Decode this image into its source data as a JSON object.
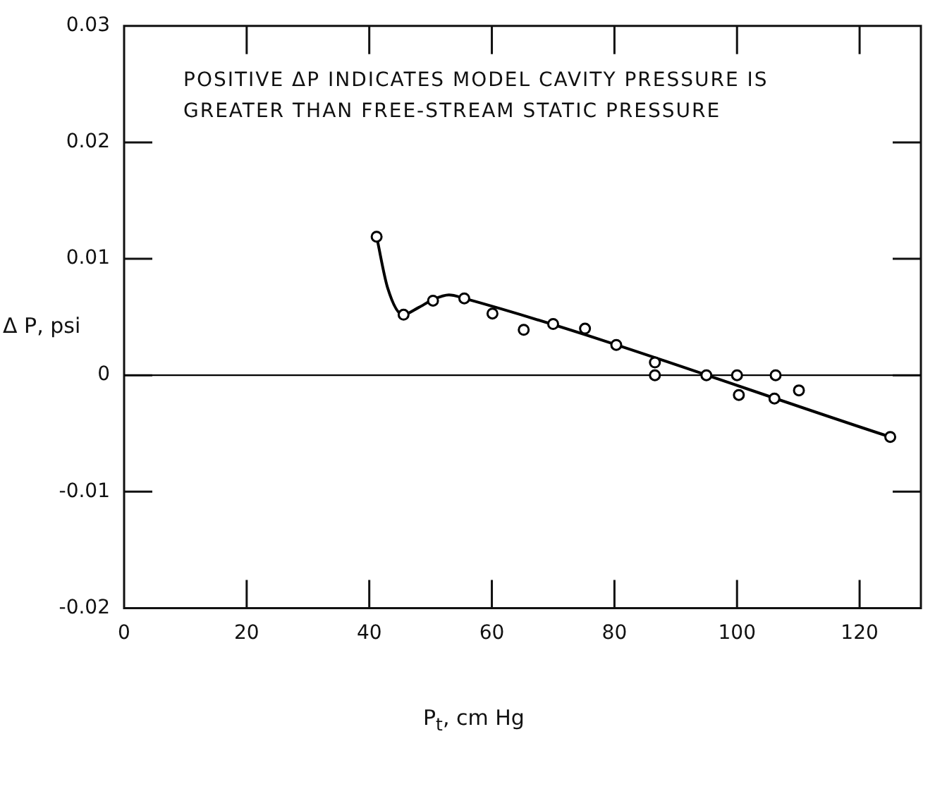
{
  "chart_data": {
    "type": "scatter",
    "annotations": [
      "POSITIVE ΔP INDICATES MODEL CAVITY PRESSURE IS GREATER THAN FREE-STREAM STATIC PRESSURE"
    ],
    "xlabel": "P$_{t}$, cm Hg",
    "ylabel": "Δ P, psi",
    "xlim": [
      0,
      130
    ],
    "xticks": [
      0,
      20,
      40,
      60,
      80,
      100,
      120
    ],
    "ylim": [
      -0.02,
      0.03
    ],
    "yticks": [
      -0.02,
      -0.01,
      0,
      0.01,
      0.02,
      0.03
    ],
    "grid": false,
    "legend": false,
    "marker": "circle",
    "ref_lines": [
      {
        "axis": "y",
        "value": 0,
        "color": "#000000"
      }
    ],
    "series": [
      {
        "type": "scatter",
        "color": "#000000",
        "x": [
          41.2,
          45.6,
          50.4,
          55.5,
          60.1,
          65.2,
          70.0,
          75.2,
          80.3,
          86.6,
          86.6,
          95.0,
          100.0,
          100.3,
          106.3,
          106.1,
          110.1,
          125.0
        ],
        "values": [
          0.0119,
          0.0052,
          0.0064,
          0.0066,
          0.0053,
          0.0039,
          0.0044,
          0.004,
          0.0026,
          0.0011,
          0,
          0,
          0,
          -0.0017,
          0,
          -0.002,
          -0.0013,
          -0.0053
        ]
      },
      {
        "type": "line",
        "color": "#000000",
        "marker": "none",
        "line_style": "solid",
        "x": [
          41.2,
          43.0,
          45.5,
          48.0,
          50.4,
          53.0,
          55.5,
          125.0
        ],
        "values": [
          0.0119,
          0.0075,
          0.0052,
          0.0058,
          0.0065,
          0.0069,
          0.0066,
          -0.0053
        ]
      }
    ]
  }
}
